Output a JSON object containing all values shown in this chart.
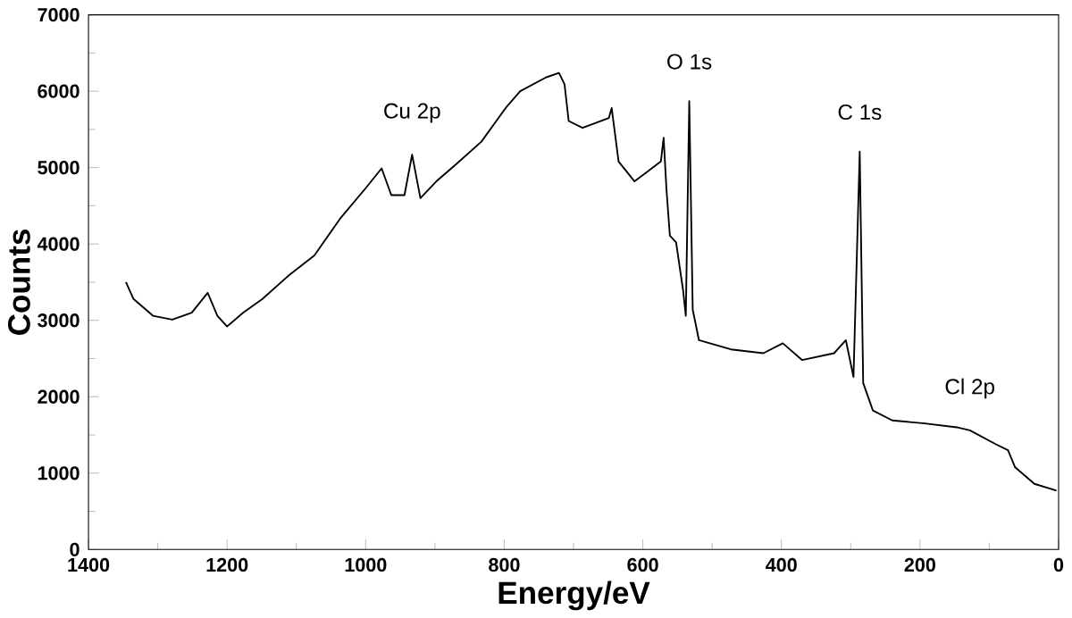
{
  "chart_data": {
    "type": "line",
    "xlabel": "Energy/eV",
    "ylabel": "Counts",
    "color": "#000000",
    "x": [
      1346,
      1335,
      1307,
      1279,
      1251,
      1228,
      1214,
      1200,
      1177,
      1149,
      1112,
      1074,
      1037,
      1000,
      977,
      963,
      944,
      933,
      921,
      898,
      870,
      833,
      798,
      777,
      740,
      721,
      713,
      707,
      687,
      649,
      645,
      635,
      612,
      593,
      574,
      570,
      566,
      561,
      552,
      542,
      538,
      533,
      528,
      519,
      473,
      426,
      398,
      370,
      324,
      307,
      296,
      287,
      282,
      268,
      240,
      193,
      147,
      128,
      91,
      73,
      63,
      35,
      3
    ],
    "values": [
      3500,
      3280,
      3060,
      3010,
      3100,
      3360,
      3060,
      2920,
      3100,
      3280,
      3580,
      3850,
      4330,
      4730,
      4990,
      4640,
      4640,
      5170,
      4600,
      4820,
      5040,
      5340,
      5780,
      6000,
      6180,
      6240,
      6090,
      5610,
      5520,
      5650,
      5780,
      5080,
      4820,
      4950,
      5080,
      5390,
      4730,
      4110,
      4020,
      3400,
      3060,
      5870,
      3140,
      2740,
      2620,
      2570,
      2700,
      2480,
      2570,
      2740,
      2260,
      5210,
      2180,
      1820,
      1690,
      1650,
      1600,
      1560,
      1380,
      1300,
      1080,
      860,
      770
    ],
    "xlim": [
      1400,
      0
    ],
    "ylim": [
      0,
      7000
    ],
    "xticks": [
      1400,
      1200,
      1000,
      800,
      600,
      400,
      200,
      0
    ],
    "yticks": [
      0,
      1000,
      2000,
      3000,
      4000,
      5000,
      6000,
      7000
    ],
    "annotations": [
      {
        "text": "Cu 2p",
        "x": 933,
        "y": 5170
      },
      {
        "text": "O 1s",
        "x": 533,
        "y": 5870
      },
      {
        "text": "C 1s",
        "x": 287,
        "y": 5210
      },
      {
        "text": "Cl 2p",
        "x": 128,
        "y": 1560
      }
    ],
    "grid": false
  }
}
